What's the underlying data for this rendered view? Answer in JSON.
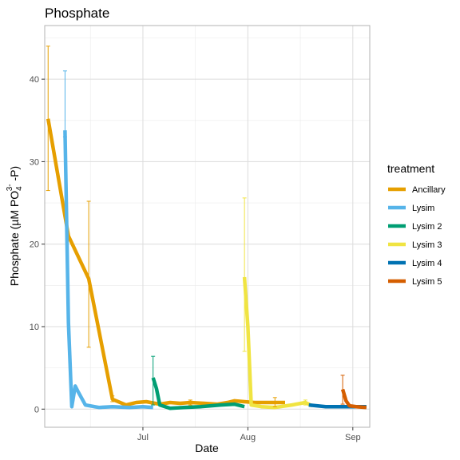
{
  "chart_data": {
    "type": "line",
    "title": "Phosphate",
    "xlabel": "Date",
    "ylabel": {
      "text": "Phosphate (µM PO",
      "superscript": "3-",
      "subscript": "4",
      "suffix": " -P)"
    },
    "x_domain": [
      "2021-06-02",
      "2021-09-06"
    ],
    "ylim": [
      -2.2,
      46.5
    ],
    "x_ticks": [
      {
        "label": "Jul",
        "date": "2021-07-01"
      },
      {
        "label": "Aug",
        "date": "2021-08-01"
      },
      {
        "label": "Sep",
        "date": "2021-09-01"
      }
    ],
    "y_ticks": [
      0,
      10,
      20,
      30,
      40
    ],
    "grid": true,
    "legend": {
      "title": "treatment",
      "position": "right"
    },
    "series": [
      {
        "name": "Ancillary",
        "color": "#E69F00",
        "points": [
          {
            "x": "2021-06-03",
            "y": 35.2,
            "err": [
              26.5,
              44.0
            ]
          },
          {
            "x": "2021-06-09",
            "y": 21.0
          },
          {
            "x": "2021-06-15",
            "y": 15.8,
            "err": [
              7.5,
              25.2
            ]
          },
          {
            "x": "2021-06-22",
            "y": 1.2,
            "err": [
              0.9,
              1.6
            ]
          },
          {
            "x": "2021-06-26",
            "y": 0.5
          },
          {
            "x": "2021-06-29",
            "y": 0.8
          },
          {
            "x": "2021-07-02",
            "y": 0.9
          },
          {
            "x": "2021-07-06",
            "y": 0.6
          },
          {
            "x": "2021-07-09",
            "y": 0.8
          },
          {
            "x": "2021-07-12",
            "y": 0.7
          },
          {
            "x": "2021-07-15",
            "y": 0.8,
            "err": [
              0.5,
              1.1
            ]
          },
          {
            "x": "2021-07-19",
            "y": 0.7
          },
          {
            "x": "2021-07-23",
            "y": 0.6
          },
          {
            "x": "2021-07-26",
            "y": 0.8
          },
          {
            "x": "2021-07-28",
            "y": 1.0
          },
          {
            "x": "2021-07-31",
            "y": 0.9
          },
          {
            "x": "2021-08-03",
            "y": 0.8
          },
          {
            "x": "2021-08-06",
            "y": 0.8
          },
          {
            "x": "2021-08-09",
            "y": 0.8,
            "err": [
              0.3,
              1.4
            ]
          },
          {
            "x": "2021-08-12",
            "y": 0.8
          }
        ]
      },
      {
        "name": "Lysim",
        "color": "#56B4E9",
        "points": [
          {
            "x": "2021-06-08",
            "y": 33.8,
            "err": [
              33.0,
              41.0
            ]
          },
          {
            "x": "2021-06-09",
            "y": 10.5
          },
          {
            "x": "2021-06-10",
            "y": 0.3
          },
          {
            "x": "2021-06-11",
            "y": 2.8
          },
          {
            "x": "2021-06-12",
            "y": 2.0
          },
          {
            "x": "2021-06-14",
            "y": 0.5
          },
          {
            "x": "2021-06-18",
            "y": 0.2
          },
          {
            "x": "2021-06-22",
            "y": 0.3
          },
          {
            "x": "2021-06-27",
            "y": 0.2
          },
          {
            "x": "2021-07-01",
            "y": 0.3
          },
          {
            "x": "2021-07-04",
            "y": 0.2
          }
        ]
      },
      {
        "name": "Lysim 2",
        "color": "#009E73",
        "points": [
          {
            "x": "2021-07-04",
            "y": 3.8,
            "err": [
              0.5,
              6.4
            ]
          },
          {
            "x": "2021-07-05",
            "y": 2.5
          },
          {
            "x": "2021-07-06",
            "y": 0.5
          },
          {
            "x": "2021-07-09",
            "y": 0.1
          },
          {
            "x": "2021-07-13",
            "y": 0.2
          },
          {
            "x": "2021-07-18",
            "y": 0.3
          },
          {
            "x": "2021-07-24",
            "y": 0.5
          },
          {
            "x": "2021-07-28",
            "y": 0.6
          },
          {
            "x": "2021-07-31",
            "y": 0.3
          }
        ]
      },
      {
        "name": "Lysim 3",
        "color": "#F0E442",
        "points": [
          {
            "x": "2021-07-31",
            "y": 16.0,
            "err": [
              7.0,
              25.6
            ]
          },
          {
            "x": "2021-08-01",
            "y": 10.0
          },
          {
            "x": "2021-08-02",
            "y": 0.5
          },
          {
            "x": "2021-08-05",
            "y": 0.3
          },
          {
            "x": "2021-08-09",
            "y": 0.2
          },
          {
            "x": "2021-08-14",
            "y": 0.5
          },
          {
            "x": "2021-08-18",
            "y": 0.8,
            "err": [
              0.5,
              1.1
            ]
          },
          {
            "x": "2021-08-20",
            "y": 0.4
          }
        ]
      },
      {
        "name": "Lysim 4",
        "color": "#0072B2",
        "points": [
          {
            "x": "2021-08-19",
            "y": 0.5
          },
          {
            "x": "2021-08-24",
            "y": 0.3
          },
          {
            "x": "2021-08-28",
            "y": 0.3
          },
          {
            "x": "2021-09-01",
            "y": 0.3
          },
          {
            "x": "2021-09-05",
            "y": 0.3
          }
        ]
      },
      {
        "name": "Lysim 5",
        "color": "#D55E00",
        "points": [
          {
            "x": "2021-08-29",
            "y": 2.4,
            "err": [
              0.6,
              4.1
            ]
          },
          {
            "x": "2021-08-30",
            "y": 1.0
          },
          {
            "x": "2021-08-31",
            "y": 0.4
          },
          {
            "x": "2021-09-02",
            "y": 0.3
          },
          {
            "x": "2021-09-05",
            "y": 0.2
          }
        ]
      }
    ]
  }
}
